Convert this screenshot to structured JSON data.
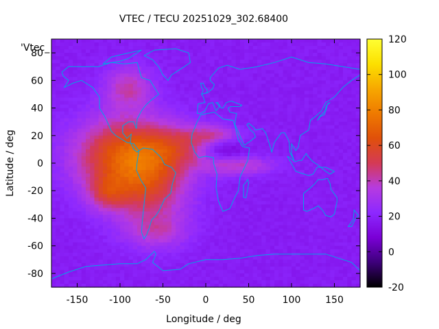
{
  "chart_data": {
    "type": "heatmap",
    "title": "VTEC / TECU 20251029_302.68400",
    "xlabel": "Longitude / deg",
    "ylabel": "Latitude / deg",
    "legend_label": "'Vtec_",
    "xlim": [
      -180,
      180
    ],
    "ylim": [
      -90,
      90
    ],
    "x_ticks": [
      -150,
      -100,
      -50,
      0,
      50,
      100,
      150
    ],
    "y_ticks": [
      -80,
      -60,
      -40,
      -20,
      0,
      20,
      40,
      60,
      80
    ],
    "colorbar": {
      "range": [
        -20,
        120
      ],
      "ticks": [
        -20,
        0,
        20,
        40,
        60,
        80,
        100,
        120
      ],
      "palette": [
        "#000000",
        "#3d007a",
        "#7a00d6",
        "#8d28ff",
        "#b63be0",
        "#d43a55",
        "#e0500a",
        "#ef7a00",
        "#f7a800",
        "#fce000",
        "#ffff33"
      ]
    },
    "coastline_color": "#00a6e6",
    "grid": false,
    "description_of_field": "Background ~20 TECU; equatorial anomaly over Americas/Atlantic up to ~85 TECU"
  }
}
